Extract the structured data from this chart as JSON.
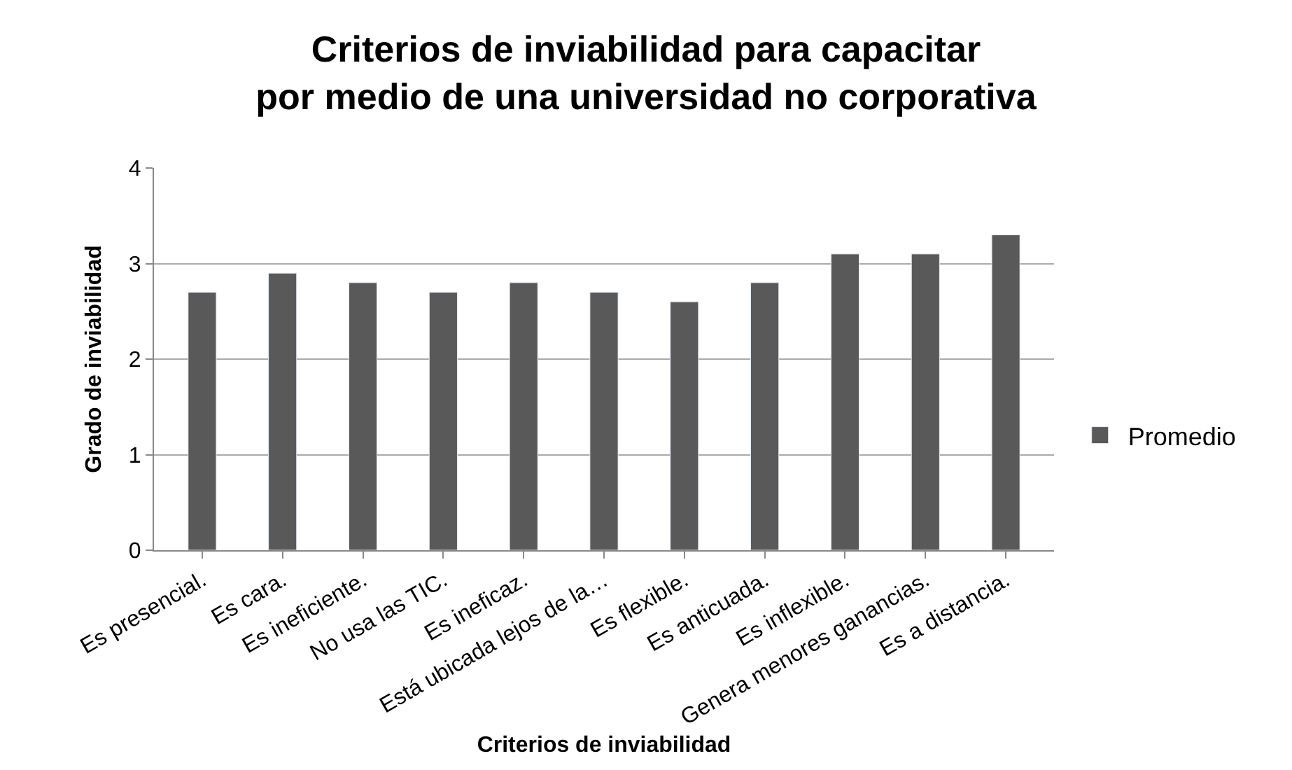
{
  "chart_data": {
    "type": "bar",
    "title": "Criterios de inviabilidad para capacitar por medio de una universidad no corporativa",
    "xlabel": "Criterios de inviabilidad",
    "ylabel": "Grado de inviabilidad",
    "categories": [
      "Es presencial.",
      "Es cara.",
      "Es ineficiente.",
      "No usa las TIC.",
      "Es ineficaz.",
      "Está ubicada lejos de la…",
      "Es flexible.",
      "Es anticuada.",
      "Es inflexible.",
      "Genera menores ganancias.",
      "Es a distancia."
    ],
    "series": [
      {
        "name": "Promedio",
        "color": "#595959",
        "values": [
          2.7,
          2.9,
          2.8,
          2.7,
          2.8,
          2.7,
          2.6,
          2.8,
          3.1,
          3.1,
          3.3
        ]
      }
    ],
    "ylim": [
      0,
      4
    ],
    "yticks": [
      0,
      1,
      2,
      3,
      4
    ],
    "grid": "y",
    "legend": "right"
  }
}
